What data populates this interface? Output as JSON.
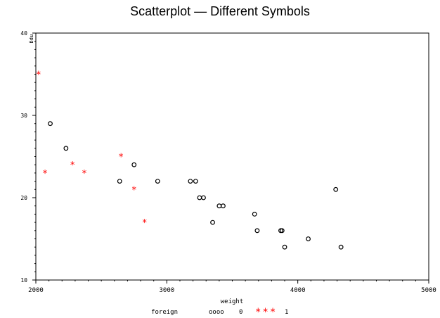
{
  "chart_data": {
    "type": "scatter",
    "title": "Scatterplot — Different Symbols",
    "xlabel": "weight",
    "ylabel": "mpg",
    "xlim": [
      2000,
      5000
    ],
    "ylim": [
      10,
      40
    ],
    "x_ticks": [
      2000,
      3000,
      4000,
      5000
    ],
    "y_ticks": [
      10,
      20,
      30,
      40
    ],
    "legend": {
      "title": "foreign",
      "position": "bottom",
      "entries": [
        {
          "symbol": "oooo",
          "label": "0"
        },
        {
          "symbol": "***",
          "label": "1"
        }
      ]
    },
    "series": [
      {
        "name": "0",
        "marker": "circle",
        "color": "#000000",
        "x": [
          2110,
          2230,
          2640,
          2750,
          2930,
          3180,
          3220,
          3250,
          3280,
          3350,
          3400,
          3430,
          3670,
          3690,
          3870,
          3880,
          3900,
          4080,
          4290,
          4330
        ],
        "y": [
          29,
          26,
          22,
          24,
          22,
          22,
          22,
          20,
          20,
          17,
          19,
          19,
          18,
          16,
          16,
          16,
          14,
          15,
          21,
          14
        ]
      },
      {
        "name": "1",
        "marker": "star",
        "color": "#ff0000",
        "x": [
          2020,
          2070,
          2280,
          2370,
          2650,
          2750,
          2830
        ],
        "y": [
          35,
          23,
          24,
          23,
          25,
          21,
          17
        ]
      }
    ]
  }
}
